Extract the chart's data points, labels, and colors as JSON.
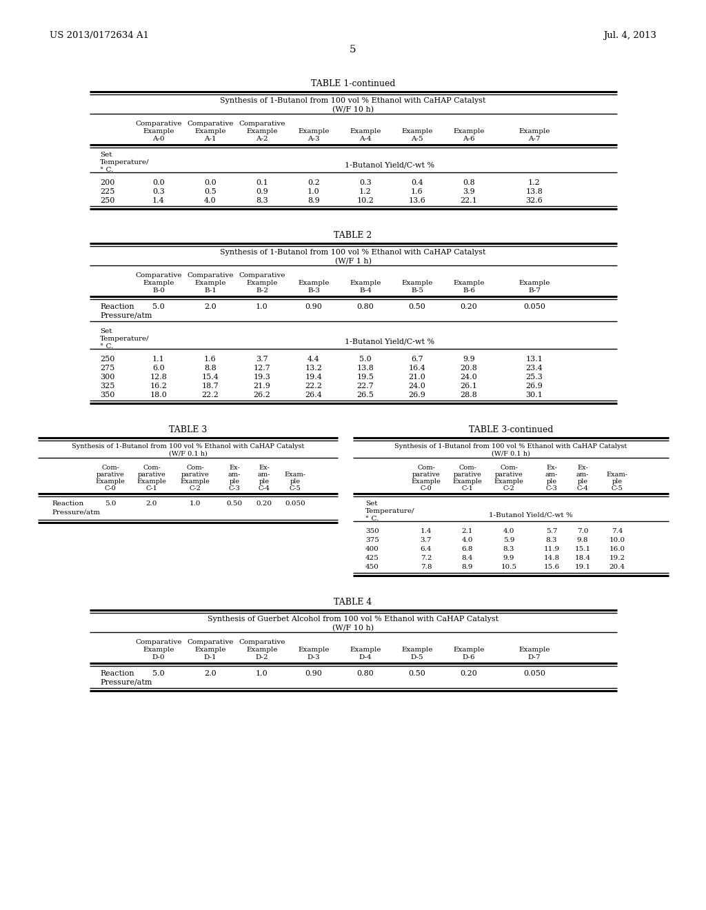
{
  "header_left": "US 2013/0172634 A1",
  "header_right": "Jul. 4, 2013",
  "page_number": "5",
  "background_color": "#ffffff",
  "table1_continued": {
    "title": "TABLE 1-continued",
    "subtitle1": "Synthesis of 1-Butanol from 100 vol % Ethanol with CaHAP Catalyst",
    "subtitle2": "(W/F 10 h)",
    "rows": [
      [
        "200",
        "0.0",
        "0.0",
        "0.1",
        "0.2",
        "0.3",
        "0.4",
        "0.8",
        "1.2"
      ],
      [
        "225",
        "0.3",
        "0.5",
        "0.9",
        "1.0",
        "1.2",
        "1.6",
        "3.9",
        "13.8"
      ],
      [
        "250",
        "1.4",
        "4.0",
        "8.3",
        "8.9",
        "10.2",
        "13.6",
        "22.1",
        "32.6"
      ]
    ],
    "col_ids": [
      "A-0",
      "A-1",
      "A-2",
      "A-3",
      "A-4",
      "A-5",
      "A-6",
      "A-7"
    ],
    "comp_flags": [
      true,
      true,
      true,
      false,
      false,
      false,
      false,
      false
    ]
  },
  "table2": {
    "title": "TABLE 2",
    "subtitle1": "Synthesis of 1-Butanol from 100 vol % Ethanol with CaHAP Catalyst",
    "subtitle2": "(W/F 1 h)",
    "col_ids": [
      "B-0",
      "B-1",
      "B-2",
      "B-3",
      "B-4",
      "B-5",
      "B-6",
      "B-7"
    ],
    "comp_flags": [
      true,
      true,
      true,
      false,
      false,
      false,
      false,
      false
    ],
    "reaction_vals": [
      "5.0",
      "2.0",
      "1.0",
      "0.90",
      "0.80",
      "0.50",
      "0.20",
      "0.050"
    ],
    "rows": [
      [
        "250",
        "1.1",
        "1.6",
        "3.7",
        "4.4",
        "5.0",
        "6.7",
        "9.9",
        "13.1"
      ],
      [
        "275",
        "6.0",
        "8.8",
        "12.7",
        "13.2",
        "13.8",
        "16.4",
        "20.8",
        "23.4"
      ],
      [
        "300",
        "12.8",
        "15.4",
        "19.3",
        "19.4",
        "19.5",
        "21.0",
        "24.0",
        "25.3"
      ],
      [
        "325",
        "16.2",
        "18.7",
        "21.9",
        "22.2",
        "22.7",
        "24.0",
        "26.1",
        "26.9"
      ],
      [
        "350",
        "18.0",
        "22.2",
        "26.2",
        "26.4",
        "26.5",
        "26.9",
        "28.8",
        "30.1"
      ]
    ]
  },
  "table3": {
    "title": "TABLE 3",
    "subtitle1": "Synthesis of 1-Butanol from 100 vol % Ethanol with CaHAP Catalyst",
    "subtitle2": "(W/F 0.1 h)",
    "col_ids": [
      "C-0",
      "C-1",
      "C-2",
      "C-3",
      "C-4",
      "C-5"
    ],
    "reaction_vals": [
      "5.0",
      "2.0",
      "1.0",
      "0.50",
      "0.20",
      "0.050"
    ]
  },
  "table3c": {
    "title": "TABLE 3-continued",
    "subtitle1": "Synthesis of 1-Butanol from 100 vol % Ethanol with CaHAP Catalyst",
    "subtitle2": "(W/F 0.1 h)",
    "col_ids": [
      "C-0",
      "C-1",
      "C-2",
      "C-3",
      "C-4",
      "C-5"
    ],
    "rows": [
      [
        "350",
        "1.4",
        "2.1",
        "4.0",
        "5.7",
        "7.0",
        "7.4"
      ],
      [
        "375",
        "3.7",
        "4.0",
        "5.9",
        "8.3",
        "9.8",
        "10.0"
      ],
      [
        "400",
        "6.4",
        "6.8",
        "8.3",
        "11.9",
        "15.1",
        "16.0"
      ],
      [
        "425",
        "7.2",
        "8.4",
        "9.9",
        "14.8",
        "18.4",
        "19.2"
      ],
      [
        "450",
        "7.8",
        "8.9",
        "10.5",
        "15.6",
        "19.1",
        "20.4"
      ]
    ]
  },
  "table4": {
    "title": "TABLE 4",
    "subtitle1": "Synthesis of Guerbet Alcohol from 100 vol % Ethanol with CaHAP Catalyst",
    "subtitle2": "(W/F 10 h)",
    "col_ids": [
      "D-0",
      "D-1",
      "D-2",
      "D-3",
      "D-4",
      "D-5",
      "D-6",
      "D-7"
    ],
    "comp_flags": [
      true,
      true,
      true,
      false,
      false,
      false,
      false,
      false
    ],
    "reaction_vals": [
      "5.0",
      "2.0",
      "1.0",
      "0.90",
      "0.80",
      "0.50",
      "0.20",
      "0.050"
    ]
  }
}
